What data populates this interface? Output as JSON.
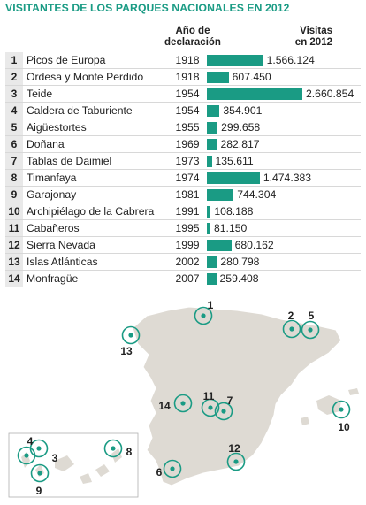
{
  "title": "VISITANTES DE LOS PARQUES NACIONALES EN 2012",
  "headers": {
    "year_line1": "Año de",
    "year_line2": "declaración",
    "visits_line1": "Visitas",
    "visits_line2": "en 2012"
  },
  "colors": {
    "accent": "#1a9b84",
    "land": "#dedad3",
    "num_bg": "#e9e9e9"
  },
  "chart_data": {
    "type": "bar",
    "title": "VISITANTES DE LOS PARQUES NACIONALES EN 2012",
    "orientation": "horizontal",
    "rows": [
      {
        "num": "1",
        "name": "Picos de Europa",
        "year": "1918",
        "visits": 1566124,
        "label": "1.566.124"
      },
      {
        "num": "2",
        "name": "Ordesa y Monte Perdido",
        "year": "1918",
        "visits": 607450,
        "label": "607.450"
      },
      {
        "num": "3",
        "name": "Teide",
        "year": "1954",
        "visits": 2660854,
        "label": "2.660.854"
      },
      {
        "num": "4",
        "name": "Caldera de Taburiente",
        "year": "1954",
        "visits": 354901,
        "label": "354.901"
      },
      {
        "num": "5",
        "name": "Aigüestortes",
        "year": "1955",
        "visits": 299658,
        "label": "299.658"
      },
      {
        "num": "6",
        "name": "Doñana",
        "year": "1969",
        "visits": 282817,
        "label": "282.817"
      },
      {
        "num": "7",
        "name": "Tablas de Daimiel",
        "year": "1973",
        "visits": 135611,
        "label": "135.611"
      },
      {
        "num": "8",
        "name": "Timanfaya",
        "year": "1974",
        "visits": 1474383,
        "label": "1.474.383"
      },
      {
        "num": "9",
        "name": "Garajonay",
        "year": "1981",
        "visits": 744304,
        "label": "744.304"
      },
      {
        "num": "10",
        "name": "Archipiélago de la Cabrera",
        "year": "1991",
        "visits": 108188,
        "label": "108.188"
      },
      {
        "num": "11",
        "name": "Cabañeros",
        "year": "1995",
        "visits": 81150,
        "label": "81.150"
      },
      {
        "num": "12",
        "name": "Sierra Nevada",
        "year": "1999",
        "visits": 680162,
        "label": "680.162"
      },
      {
        "num": "13",
        "name": "Islas Atlánticas",
        "year": "2002",
        "visits": 280798,
        "label": "280.798"
      },
      {
        "num": "14",
        "name": "Monfragüe",
        "year": "2007",
        "visits": 259408,
        "label": "259.408"
      }
    ]
  },
  "map": {
    "markers": [
      {
        "num": "1"
      },
      {
        "num": "2"
      },
      {
        "num": "3"
      },
      {
        "num": "4"
      },
      {
        "num": "5"
      },
      {
        "num": "6"
      },
      {
        "num": "7"
      },
      {
        "num": "8"
      },
      {
        "num": "9"
      },
      {
        "num": "10"
      },
      {
        "num": "11"
      },
      {
        "num": "12"
      },
      {
        "num": "13"
      },
      {
        "num": "14"
      }
    ]
  }
}
